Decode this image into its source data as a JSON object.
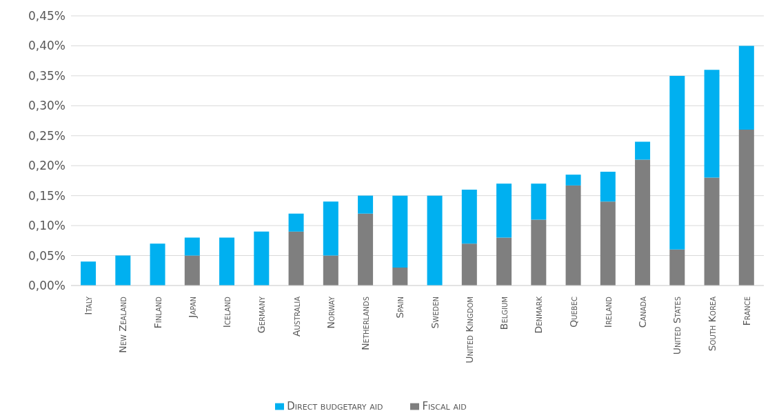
{
  "chart_data": {
    "type": "bar",
    "stacked": true,
    "categories": [
      "Italy",
      "New Zealand",
      "Finland",
      "Japan",
      "Iceland",
      "Germany",
      "Australia",
      "Norway",
      "Netherlands",
      "Spain",
      "Sweden",
      "United Kingdom",
      "Belgium",
      "Denmark",
      "Quebec",
      "Ireland",
      "Canada",
      "United States",
      "South Korea",
      "France"
    ],
    "series": [
      {
        "name": "Fiscal aid",
        "color": "#7f7f7f",
        "values": [
          0,
          0,
          0,
          0.05,
          0,
          0,
          0.09,
          0.05,
          0.12,
          0.03,
          0,
          0.07,
          0.08,
          0.11,
          0.167,
          0.14,
          0.21,
          0.06,
          0.18,
          0.26
        ]
      },
      {
        "name": "Direct budgetary aid",
        "color": "#00b0f0",
        "values": [
          0.04,
          0.05,
          0.07,
          0.03,
          0.08,
          0.09,
          0.03,
          0.09,
          0.03,
          0.12,
          0.15,
          0.09,
          0.09,
          0.06,
          0.018,
          0.05,
          0.03,
          0.29,
          0.18,
          0.14
        ]
      }
    ],
    "ylim": [
      0,
      0.45
    ],
    "yticks": [
      {
        "value": 0,
        "label": "0,00%"
      },
      {
        "value": 0.05,
        "label": "0,05%"
      },
      {
        "value": 0.1,
        "label": "0,10%"
      },
      {
        "value": 0.15,
        "label": "0,15%"
      },
      {
        "value": 0.2,
        "label": "0,20%"
      },
      {
        "value": 0.25,
        "label": "0,25%"
      },
      {
        "value": 0.3,
        "label": "0,30%"
      },
      {
        "value": 0.35,
        "label": "0,35%"
      },
      {
        "value": 0.4,
        "label": "0,40%"
      },
      {
        "value": 0.45,
        "label": "0,45%"
      }
    ],
    "grid": "y",
    "legend": "bottom"
  }
}
